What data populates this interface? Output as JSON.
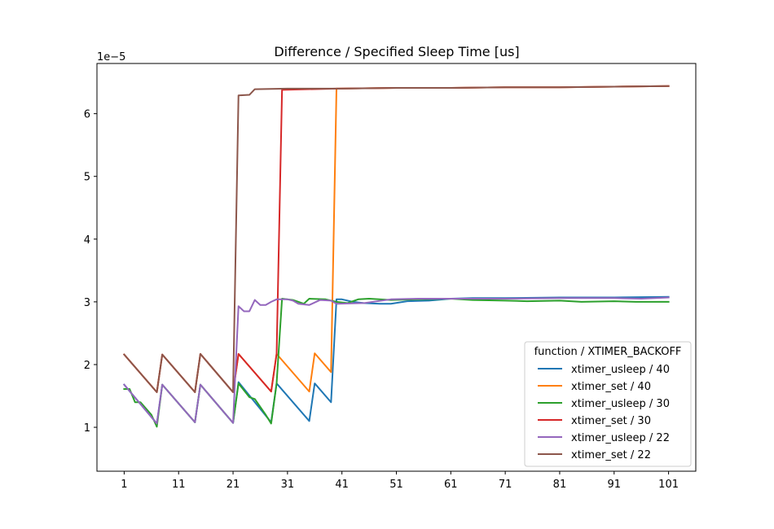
{
  "chart_data": {
    "type": "line",
    "title": "Difference / Specified Sleep Time [us]",
    "xlabel": "",
    "ylabel": "",
    "y_offset_label": "1e−5",
    "xlim": [
      -4,
      106
    ],
    "ylim": [
      3e-06,
      6.8e-05
    ],
    "x_ticks": [
      1,
      11,
      21,
      31,
      41,
      51,
      61,
      71,
      81,
      91,
      101
    ],
    "x_tick_labels": [
      "1",
      "11",
      "21",
      "31",
      "41",
      "51",
      "61",
      "71",
      "81",
      "91",
      "101"
    ],
    "y_ticks": [
      1e-05,
      2e-05,
      3e-05,
      4e-05,
      5e-05,
      6e-05
    ],
    "y_tick_labels": [
      "1",
      "2",
      "3",
      "4",
      "5",
      "6"
    ],
    "grid": false,
    "legend": {
      "title": "function / XTIMER_BACKOFF",
      "placement": "lower-right"
    },
    "series": [
      {
        "name": "xtimer_usleep / 40",
        "color": "#1f77b4",
        "points": [
          [
            1,
            1.68e-05
          ],
          [
            7,
            1.06e-05
          ],
          [
            8,
            1.68e-05
          ],
          [
            14,
            1.08e-05
          ],
          [
            15,
            1.68e-05
          ],
          [
            21,
            1.07e-05
          ],
          [
            22,
            1.72e-05
          ],
          [
            28,
            1.08e-05
          ],
          [
            29,
            1.7e-05
          ],
          [
            35,
            1.1e-05
          ],
          [
            36,
            1.7e-05
          ],
          [
            39,
            1.4e-05
          ],
          [
            40,
            3.04e-05
          ],
          [
            41,
            3.04e-05
          ],
          [
            43,
            3e-05
          ],
          [
            45,
            2.98e-05
          ],
          [
            48,
            2.97e-05
          ],
          [
            50,
            2.97e-05
          ],
          [
            53,
            3.01e-05
          ],
          [
            57,
            3.02e-05
          ],
          [
            61,
            3.05e-05
          ],
          [
            65,
            3.06e-05
          ],
          [
            71,
            3.06e-05
          ],
          [
            81,
            3.07e-05
          ],
          [
            91,
            3.07e-05
          ],
          [
            101,
            3.08e-05
          ]
        ]
      },
      {
        "name": "xtimer_set / 40",
        "color": "#ff7f0e",
        "points": [
          [
            1,
            2.16e-05
          ],
          [
            7,
            1.56e-05
          ],
          [
            8,
            2.16e-05
          ],
          [
            14,
            1.56e-05
          ],
          [
            15,
            2.17e-05
          ],
          [
            21,
            1.56e-05
          ],
          [
            22,
            2.17e-05
          ],
          [
            28,
            1.57e-05
          ],
          [
            29,
            2.17e-05
          ],
          [
            35,
            1.57e-05
          ],
          [
            36,
            2.18e-05
          ],
          [
            39,
            1.88e-05
          ],
          [
            40,
            6.4e-05
          ],
          [
            51,
            6.41e-05
          ],
          [
            61,
            6.41e-05
          ],
          [
            71,
            6.42e-05
          ],
          [
            81,
            6.42e-05
          ],
          [
            91,
            6.43e-05
          ],
          [
            101,
            6.44e-05
          ]
        ]
      },
      {
        "name": "xtimer_usleep / 30",
        "color": "#2ca02c",
        "points": [
          [
            1,
            1.61e-05
          ],
          [
            2,
            1.61e-05
          ],
          [
            3,
            1.4e-05
          ],
          [
            4,
            1.4e-05
          ],
          [
            6,
            1.2e-05
          ],
          [
            7,
            1.01e-05
          ],
          [
            8,
            1.68e-05
          ],
          [
            14,
            1.08e-05
          ],
          [
            15,
            1.68e-05
          ],
          [
            21,
            1.07e-05
          ],
          [
            22,
            1.7e-05
          ],
          [
            24,
            1.48e-05
          ],
          [
            25,
            1.45e-05
          ],
          [
            27,
            1.2e-05
          ],
          [
            28,
            1.06e-05
          ],
          [
            29,
            1.7e-05
          ],
          [
            30,
            3.05e-05
          ],
          [
            32,
            3.03e-05
          ],
          [
            34,
            2.97e-05
          ],
          [
            35,
            3.05e-05
          ],
          [
            38,
            3.04e-05
          ],
          [
            40,
            3e-05
          ],
          [
            42,
            2.98e-05
          ],
          [
            44,
            3.04e-05
          ],
          [
            46,
            3.05e-05
          ],
          [
            50,
            3.03e-05
          ],
          [
            55,
            3.04e-05
          ],
          [
            61,
            3.05e-05
          ],
          [
            65,
            3.03e-05
          ],
          [
            71,
            3.02e-05
          ],
          [
            75,
            3.01e-05
          ],
          [
            81,
            3.02e-05
          ],
          [
            85,
            3e-05
          ],
          [
            91,
            3.01e-05
          ],
          [
            95,
            3e-05
          ],
          [
            101,
            3e-05
          ]
        ]
      },
      {
        "name": "xtimer_set / 30",
        "color": "#d62728",
        "points": [
          [
            1,
            2.16e-05
          ],
          [
            7,
            1.56e-05
          ],
          [
            8,
            2.16e-05
          ],
          [
            14,
            1.56e-05
          ],
          [
            15,
            2.17e-05
          ],
          [
            21,
            1.56e-05
          ],
          [
            22,
            2.17e-05
          ],
          [
            28,
            1.57e-05
          ],
          [
            29,
            2.17e-05
          ],
          [
            30,
            6.38e-05
          ],
          [
            40,
            6.4e-05
          ],
          [
            51,
            6.41e-05
          ],
          [
            61,
            6.41e-05
          ],
          [
            71,
            6.42e-05
          ],
          [
            81,
            6.42e-05
          ],
          [
            91,
            6.43e-05
          ],
          [
            101,
            6.44e-05
          ]
        ]
      },
      {
        "name": "xtimer_usleep / 22",
        "color": "#9467bd",
        "points": [
          [
            1,
            1.68e-05
          ],
          [
            7,
            1.06e-05
          ],
          [
            8,
            1.68e-05
          ],
          [
            14,
            1.08e-05
          ],
          [
            15,
            1.68e-05
          ],
          [
            21,
            1.07e-05
          ],
          [
            22,
            2.93e-05
          ],
          [
            23,
            2.85e-05
          ],
          [
            24,
            2.85e-05
          ],
          [
            25,
            3.03e-05
          ],
          [
            26,
            2.95e-05
          ],
          [
            27,
            2.95e-05
          ],
          [
            28,
            3e-05
          ],
          [
            29,
            3.04e-05
          ],
          [
            31,
            3.04e-05
          ],
          [
            32,
            3.02e-05
          ],
          [
            33,
            2.97e-05
          ],
          [
            35,
            2.95e-05
          ],
          [
            37,
            3.03e-05
          ],
          [
            39,
            3.02e-05
          ],
          [
            40,
            2.97e-05
          ],
          [
            45,
            2.98e-05
          ],
          [
            50,
            3.04e-05
          ],
          [
            55,
            3.05e-05
          ],
          [
            61,
            3.05e-05
          ],
          [
            71,
            3.05e-05
          ],
          [
            81,
            3.06e-05
          ],
          [
            91,
            3.06e-05
          ],
          [
            96,
            3.05e-05
          ],
          [
            101,
            3.07e-05
          ]
        ]
      },
      {
        "name": "xtimer_set / 22",
        "color": "#8c564b",
        "points": [
          [
            1,
            2.16e-05
          ],
          [
            7,
            1.56e-05
          ],
          [
            8,
            2.16e-05
          ],
          [
            14,
            1.56e-05
          ],
          [
            15,
            2.17e-05
          ],
          [
            21,
            1.56e-05
          ],
          [
            22,
            6.29e-05
          ],
          [
            24,
            6.3e-05
          ],
          [
            25,
            6.39e-05
          ],
          [
            31,
            6.4e-05
          ],
          [
            41,
            6.4e-05
          ],
          [
            51,
            6.41e-05
          ],
          [
            61,
            6.41e-05
          ],
          [
            71,
            6.42e-05
          ],
          [
            81,
            6.42e-05
          ],
          [
            91,
            6.43e-05
          ],
          [
            101,
            6.44e-05
          ]
        ]
      }
    ]
  }
}
